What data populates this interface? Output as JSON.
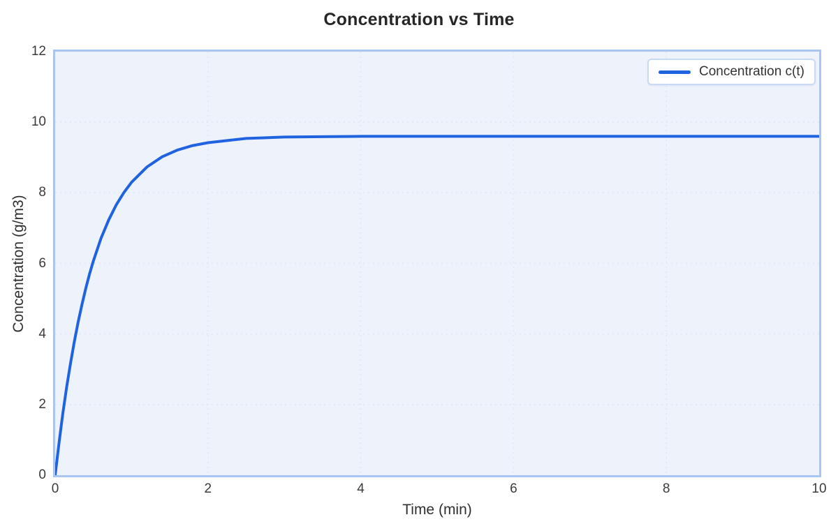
{
  "chart": {
    "colors": {
      "line": "#1f63e0",
      "plot_bg": "#eef2fb",
      "plot_border": "#a9c6f3",
      "grid": "#e1e8f6",
      "title_text": "#262626",
      "axis_text": "#2f2f2f",
      "tick_text": "#3b3b3b",
      "legend_border": "#c8daf5",
      "legend_bg": "#ffffff",
      "legend_text": "#333333"
    }
  },
  "chart_data": {
    "type": "line",
    "title": "Concentration vs Time",
    "xlabel": "Time (min)",
    "ylabel": "Concentration (g/m3)",
    "xlim": [
      0,
      10
    ],
    "ylim": [
      0,
      12
    ],
    "xticks": [
      0,
      2,
      4,
      6,
      8,
      10
    ],
    "yticks": [
      0,
      2,
      4,
      6,
      8,
      10,
      12
    ],
    "grid": true,
    "grid_style": "dotted",
    "legend_position": "top-right",
    "asymptote": 9.6,
    "series": [
      {
        "name": "Concentration c(t)",
        "color": "#1f63e0",
        "x": [
          0,
          0.05,
          0.1,
          0.15,
          0.2,
          0.25,
          0.3,
          0.35,
          0.4,
          0.45,
          0.5,
          0.6,
          0.7,
          0.8,
          0.9,
          1.0,
          1.2,
          1.4,
          1.6,
          1.8,
          2.0,
          2.5,
          3.0,
          3.5,
          4.0,
          5.0,
          6.0,
          7.0,
          8.0,
          9.0,
          10.0
        ],
        "y": [
          0,
          0.91,
          1.74,
          2.49,
          3.16,
          3.78,
          4.33,
          4.83,
          5.29,
          5.7,
          6.07,
          6.71,
          7.23,
          7.66,
          8.01,
          8.3,
          8.73,
          9.02,
          9.21,
          9.34,
          9.42,
          9.54,
          9.58,
          9.59,
          9.6,
          9.6,
          9.6,
          9.6,
          9.6,
          9.6,
          9.6
        ]
      }
    ]
  }
}
